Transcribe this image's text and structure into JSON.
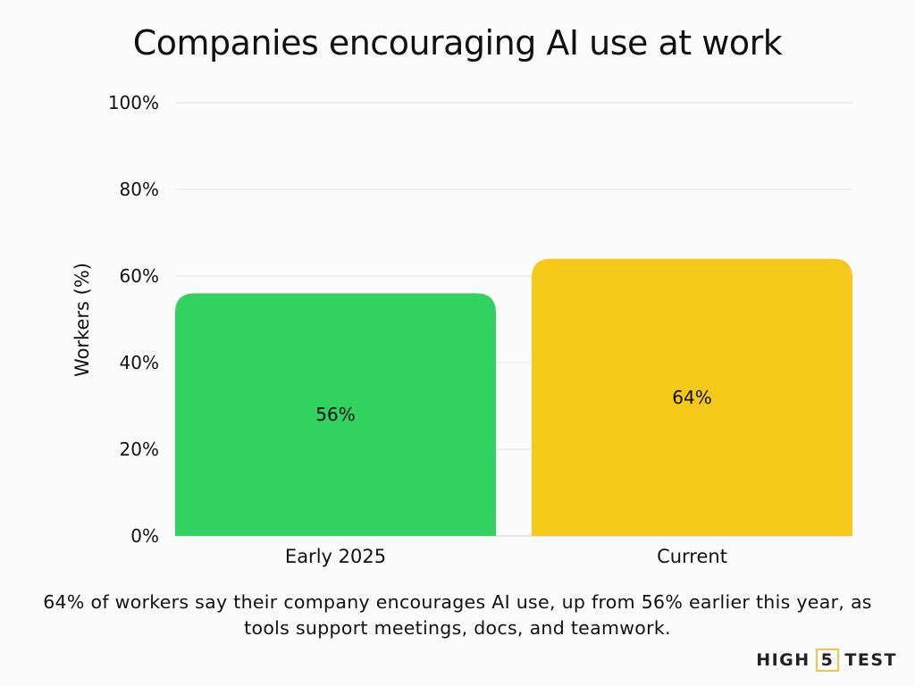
{
  "chart_data": {
    "type": "bar",
    "title": "Companies encouraging AI use at work",
    "categories": [
      "Early 2025",
      "Current"
    ],
    "values": [
      56,
      64
    ],
    "data_labels": [
      "56%",
      "64%"
    ],
    "colors": [
      "#32d260",
      "#f5c919"
    ],
    "xlabel": "",
    "ylabel": "Workers (%)",
    "ylim": [
      0,
      100
    ],
    "yticks": [
      0,
      20,
      40,
      60,
      80,
      100
    ],
    "ytick_labels": [
      "0%",
      "20%",
      "40%",
      "60%",
      "80%",
      "100%"
    ],
    "grid": true
  },
  "caption": "64% of workers say their company encourages AI use, up from 56% earlier this year, as tools support meetings, docs, and teamwork.",
  "logo": {
    "part1": "HIGH",
    "part2": "5",
    "part3": "TEST"
  }
}
